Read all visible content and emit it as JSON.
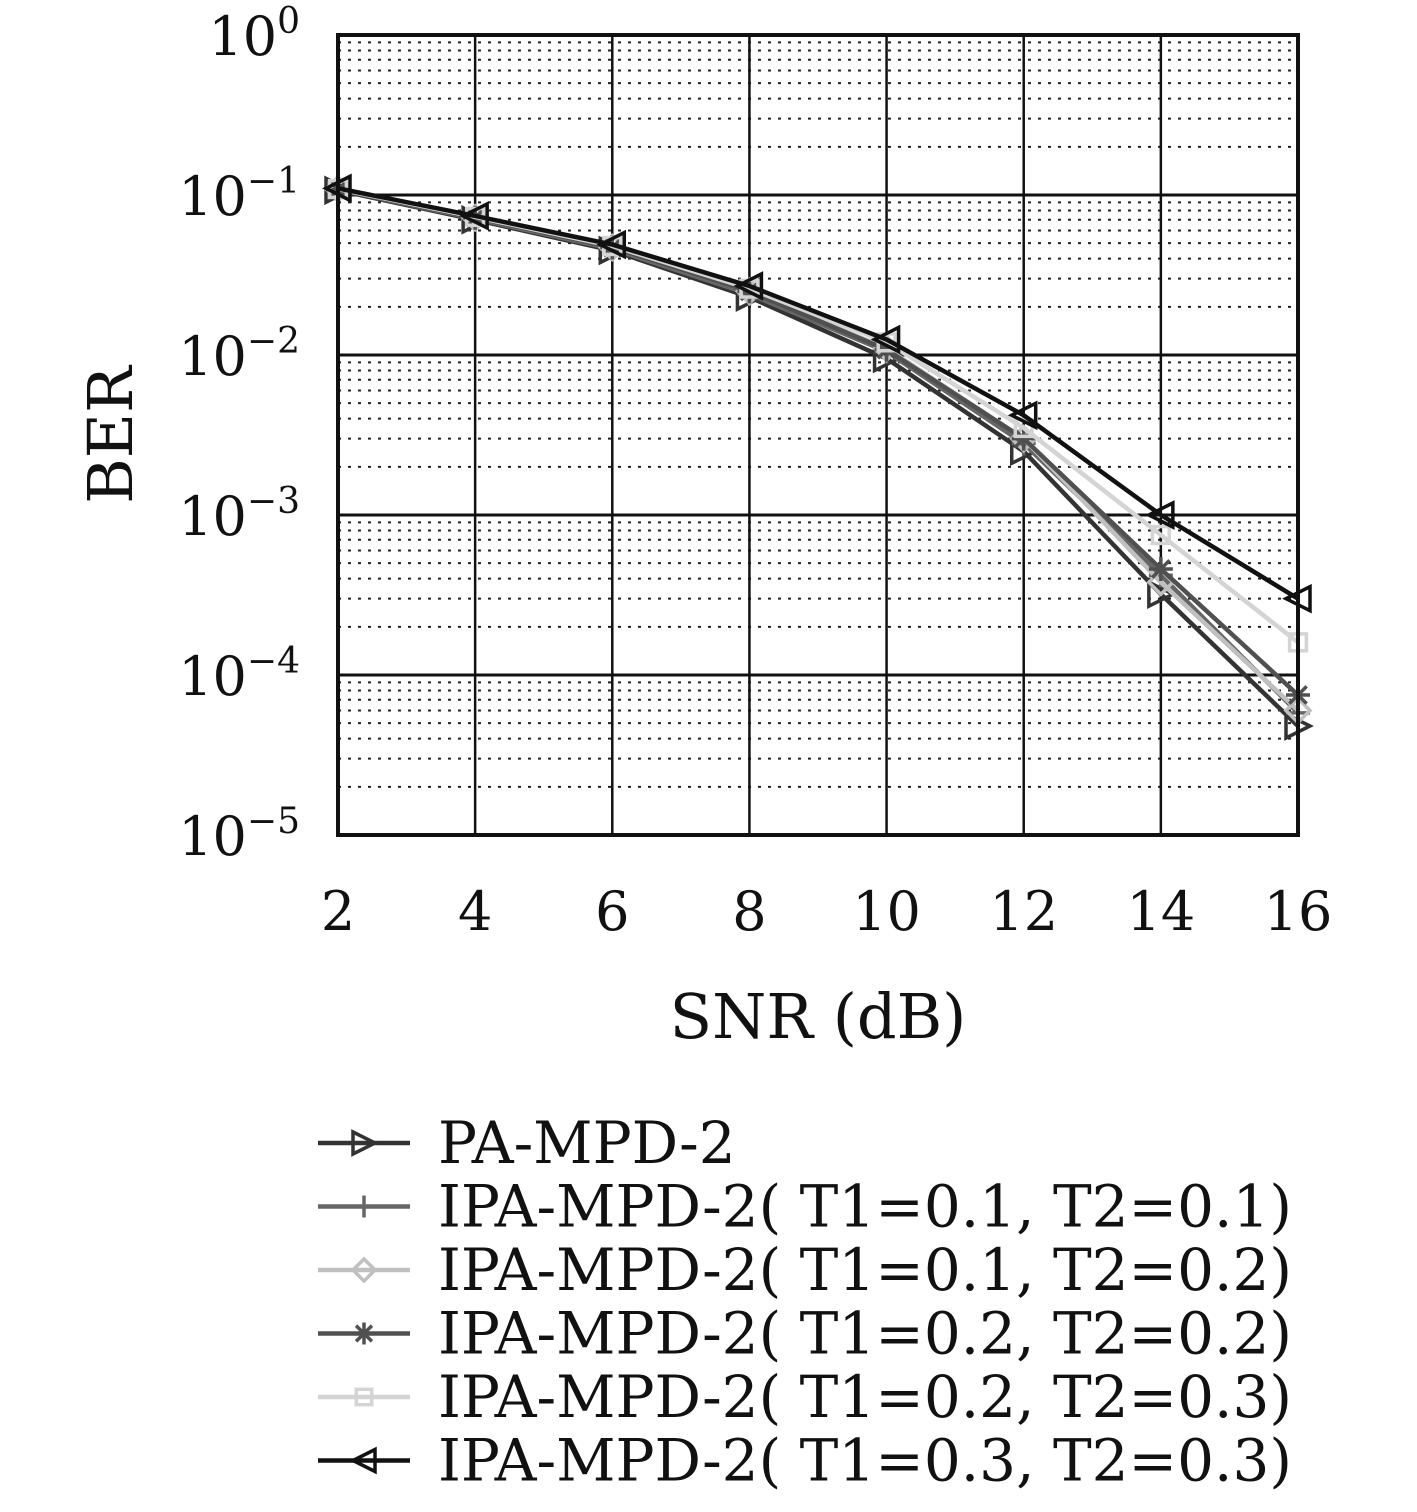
{
  "chart_data": {
    "type": "line",
    "xlabel": "SNR (dB)",
    "ylabel": "BER",
    "x_scale": "linear",
    "y_scale": "log",
    "xlim": [
      2,
      16
    ],
    "ylim": [
      1e-05,
      1
    ],
    "grid": true,
    "minor_grid": true,
    "legend_position": "below",
    "x_ticks": [
      "2",
      "4",
      "6",
      "8",
      "10",
      "12",
      "14",
      "16"
    ],
    "y_ticks": [
      {
        "base": "10",
        "exp": "0"
      },
      {
        "base": "10",
        "exp": "−1"
      },
      {
        "base": "10",
        "exp": "−2"
      },
      {
        "base": "10",
        "exp": "−3"
      },
      {
        "base": "10",
        "exp": "−4"
      },
      {
        "base": "10",
        "exp": "−5"
      }
    ],
    "x": [
      2,
      4,
      6,
      8,
      10,
      12,
      14,
      16
    ],
    "series": [
      {
        "name": "PA-MPD-2",
        "marker": "triangle-right",
        "color": "#333333",
        "values": [
          0.107,
          0.07,
          0.045,
          0.023,
          0.0095,
          0.0025,
          0.00032,
          4.8e-05
        ]
      },
      {
        "name": "IPA-MPD-2( T1=0.1,  T2=0.1)",
        "marker": "plus",
        "color": "#666666",
        "values": [
          0.108,
          0.071,
          0.046,
          0.024,
          0.0105,
          0.0028,
          0.00042,
          5.8e-05
        ]
      },
      {
        "name": "IPA-MPD-2( T1=0.1,  T2=0.2)",
        "marker": "diamond",
        "color": "#c0c0c0",
        "values": [
          0.109,
          0.072,
          0.047,
          0.025,
          0.011,
          0.003,
          0.00038,
          6e-05
        ]
      },
      {
        "name": "IPA-MPD-2( T1=0.2,  T2=0.2)",
        "marker": "asterisk",
        "color": "#505050",
        "values": [
          0.108,
          0.072,
          0.047,
          0.025,
          0.0108,
          0.003,
          0.00046,
          7.5e-05
        ]
      },
      {
        "name": "IPA-MPD-2( T1=0.2, T2=0.3)",
        "marker": "square",
        "color": "#d4d4d4",
        "values": [
          0.109,
          0.073,
          0.048,
          0.026,
          0.012,
          0.0035,
          0.00075,
          0.00016
        ]
      },
      {
        "name": "IPA-MPD-2( T1=0.3,  T2=0.3)",
        "marker": "triangle-left",
        "color": "#111111",
        "values": [
          0.11,
          0.074,
          0.049,
          0.027,
          0.0125,
          0.0042,
          0.001,
          0.0003
        ]
      }
    ]
  }
}
